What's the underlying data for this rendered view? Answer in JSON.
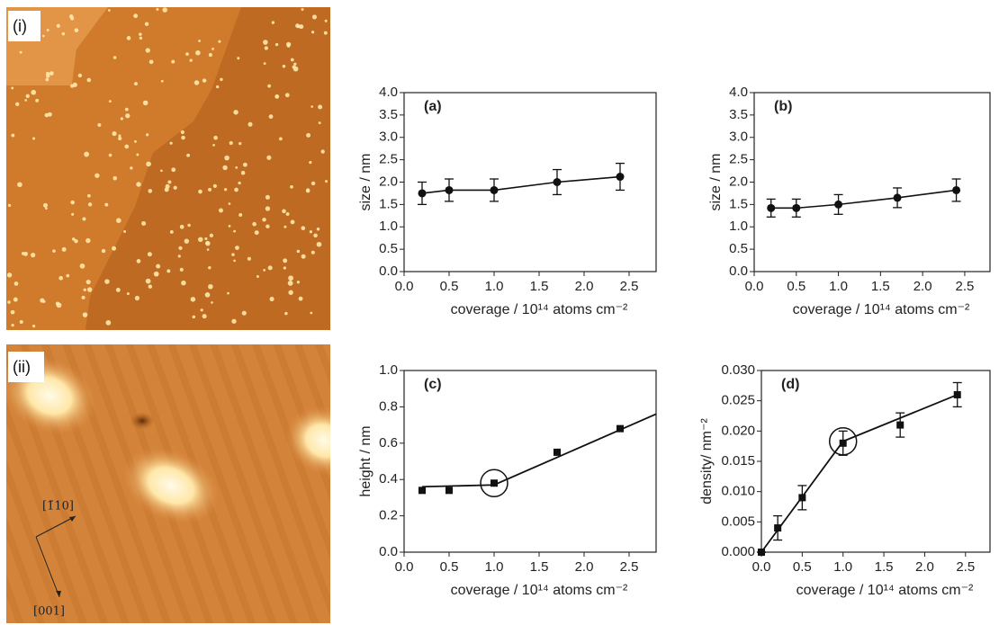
{
  "panels": [
    {
      "label": "(i)"
    },
    {
      "label": "(ii)",
      "directions": [
        "[1̄10]",
        "[001]"
      ]
    }
  ],
  "chart_data": [
    {
      "type": "scatter",
      "title": "(a)",
      "x_label": "coverage / 10¹⁴ atoms cm⁻²",
      "y_label": "size / nm",
      "x": [
        0.2,
        0.5,
        1.0,
        1.7,
        2.4
      ],
      "xlim": [
        0,
        2.8
      ],
      "xticks": [
        {
          "value": 0,
          "label": "0.0"
        },
        0.5,
        {
          "value": 1,
          "label": "1.0"
        },
        1.5,
        {
          "value": 2,
          "label": "2.0"
        },
        2.5
      ],
      "ylim": [
        0,
        4.0
      ],
      "yticks": [
        {
          "value": 0,
          "label": "0.0"
        },
        0.5,
        {
          "value": 1,
          "label": "1.0"
        },
        1.5,
        {
          "value": 2,
          "label": "2.0"
        },
        2.5,
        {
          "value": 3,
          "label": "3.0"
        },
        3.5,
        {
          "value": 4,
          "label": "4.0"
        }
      ],
      "series": [
        {
          "values": [
            1.75,
            1.82,
            1.82,
            2.0,
            2.12
          ],
          "errors": [
            0.25,
            0.25,
            0.25,
            0.28,
            0.3
          ],
          "marker": "circle",
          "color": "#111111",
          "connect": true
        }
      ]
    },
    {
      "type": "scatter",
      "title": "(b)",
      "x_label": "coverage / 10¹⁴ atoms cm⁻²",
      "y_label": "size / nm",
      "x": [
        0.2,
        0.5,
        1.0,
        1.7,
        2.4
      ],
      "xlim": [
        0,
        2.8
      ],
      "xticks": [
        {
          "value": 0,
          "label": "0.0"
        },
        0.5,
        {
          "value": 1,
          "label": "1.0"
        },
        1.5,
        {
          "value": 2,
          "label": "2.0"
        },
        2.5
      ],
      "ylim": [
        0,
        4.0
      ],
      "yticks": [
        {
          "value": 0,
          "label": "0.0"
        },
        0.5,
        {
          "value": 1,
          "label": "1.0"
        },
        1.5,
        {
          "value": 2,
          "label": "2.0"
        },
        2.5,
        {
          "value": 3,
          "label": "3.0"
        },
        3.5,
        {
          "value": 4,
          "label": "4.0"
        }
      ],
      "series": [
        {
          "values": [
            1.42,
            1.42,
            1.5,
            1.65,
            1.82
          ],
          "errors": [
            0.2,
            0.2,
            0.22,
            0.22,
            0.25
          ],
          "marker": "circle",
          "color": "#111111",
          "connect": true
        }
      ]
    },
    {
      "type": "scatter",
      "title": "(c)",
      "x_label": "coverage / 10¹⁴ atoms cm⁻²",
      "y_label": "height / nm",
      "x": [
        0.2,
        0.5,
        1.0,
        1.7,
        2.4
      ],
      "xlim": [
        0,
        2.8
      ],
      "xticks": [
        {
          "value": 0,
          "label": "0.0"
        },
        0.5,
        {
          "value": 1,
          "label": "1.0"
        },
        1.5,
        {
          "value": 2,
          "label": "2.0"
        },
        2.5
      ],
      "ylim": [
        0,
        1.0
      ],
      "yticks": [
        {
          "value": 0,
          "label": "0.0"
        },
        0.2,
        0.4,
        0.6,
        0.8,
        {
          "value": 1,
          "label": "1.0"
        }
      ],
      "series": [
        {
          "values": [
            0.34,
            0.34,
            0.38,
            0.55,
            0.68
          ],
          "marker": "square",
          "color": "#111111",
          "connect": false
        }
      ],
      "fit": {
        "x": [
          0.2,
          1.0,
          2.8
        ],
        "values": [
          0.36,
          0.37,
          0.76
        ]
      },
      "highlight": {
        "x": 1.0,
        "y": 0.38
      }
    },
    {
      "type": "scatter",
      "title": "(d)",
      "x_label": "coverage / 10¹⁴ atoms cm⁻²",
      "y_label": "density/ nm⁻²",
      "x": [
        0,
        0.2,
        0.5,
        1.0,
        1.7,
        2.4
      ],
      "xlim": [
        0,
        2.8
      ],
      "xticks": [
        {
          "value": 0,
          "label": "0.0"
        },
        0.5,
        {
          "value": 1,
          "label": "1.0"
        },
        1.5,
        {
          "value": 2,
          "label": "2.0"
        },
        2.5
      ],
      "ylim": [
        0,
        0.03
      ],
      "yticks": [
        {
          "value": 0,
          "label": "0.000"
        },
        0.005,
        {
          "value": 0.01,
          "label": "0.010"
        },
        0.015,
        {
          "value": 0.02,
          "label": "0.020"
        },
        0.025,
        {
          "value": 0.03,
          "label": "0.030"
        }
      ],
      "series": [
        {
          "values": [
            0,
            0.004,
            0.009,
            0.018,
            0.021,
            0.026
          ],
          "errors": [
            0,
            0.002,
            0.002,
            0.002,
            0.002,
            0.002
          ],
          "marker": "square",
          "color": "#111111",
          "connect": false
        }
      ],
      "fit": {
        "x": [
          0,
          1.0,
          2.4
        ],
        "values": [
          0,
          0.0183,
          0.026
        ]
      },
      "highlight": {
        "x": 1.0,
        "y": 0.0183
      }
    }
  ]
}
